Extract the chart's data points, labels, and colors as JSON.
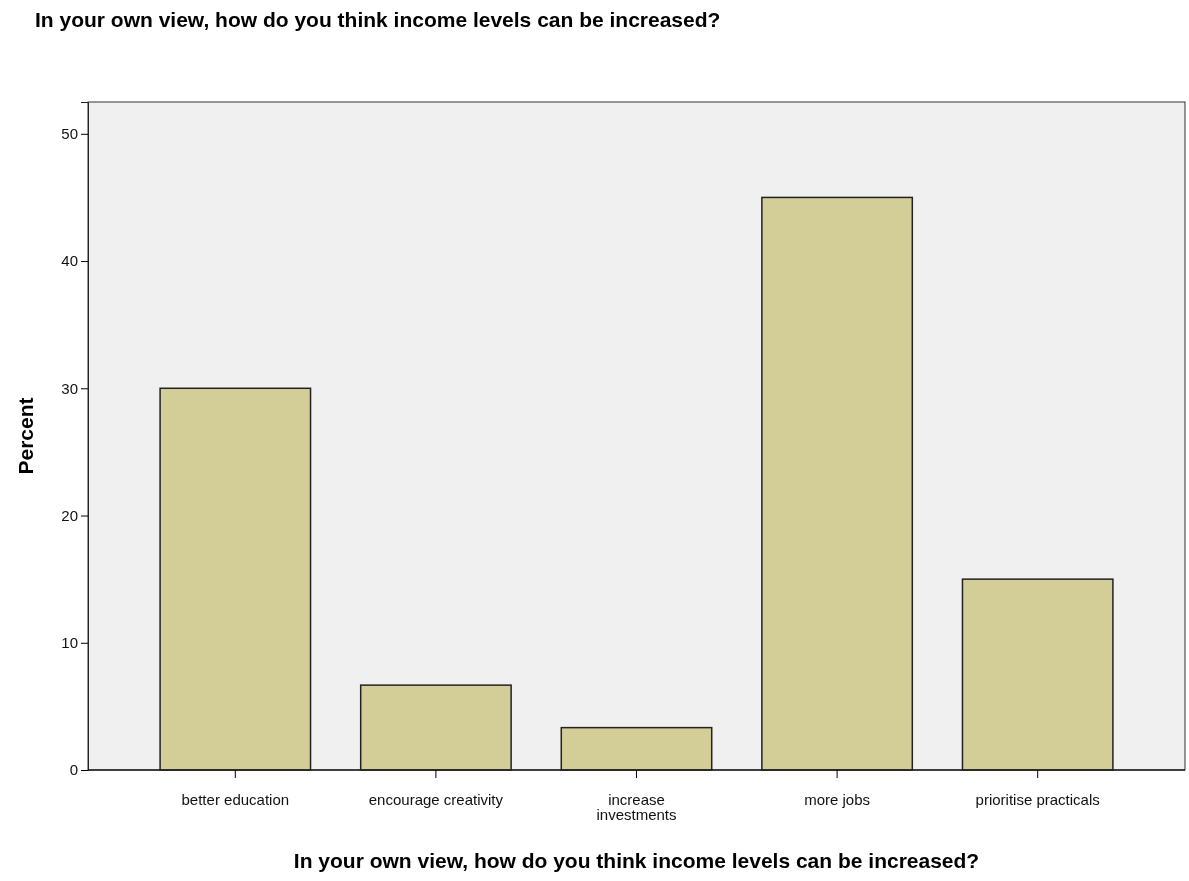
{
  "chart_data": {
    "type": "bar",
    "title": "In your own view, how do you think income levels can be increased?",
    "xlabel": "In your own view, how do you think income levels can be increased?",
    "ylabel": "Percent",
    "categories": [
      "better education",
      "encourage creativity",
      "increase\ninvestments",
      "more jobs",
      "prioritise practicals"
    ],
    "values": [
      30,
      6.67,
      3.33,
      45,
      15
    ],
    "color": "#d3ce97",
    "ylim": [
      0,
      52.5
    ],
    "yticks": [
      0,
      10,
      20,
      30,
      40,
      50
    ],
    "grid": false
  }
}
